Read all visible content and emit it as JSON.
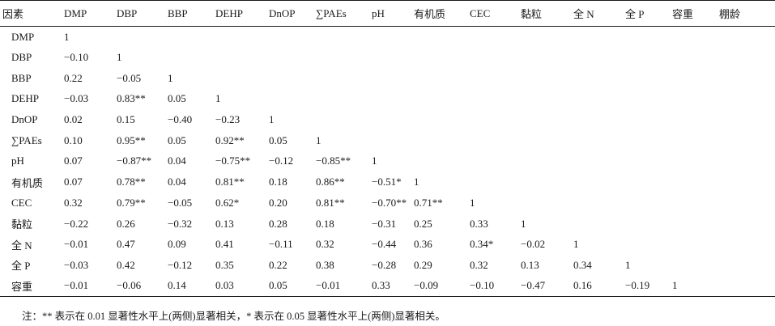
{
  "table": {
    "corner": "因素",
    "columns": [
      "DMP",
      "DBP",
      "BBP",
      "DEHP",
      "DnOP",
      "∑PAEs",
      "pH",
      "有机质",
      "CEC",
      "黏粒",
      "全 N",
      "全 P",
      "容重",
      "棚龄"
    ],
    "rows": [
      {
        "label": "DMP",
        "cells": [
          "1"
        ]
      },
      {
        "label": "DBP",
        "cells": [
          "−0.10",
          "1"
        ]
      },
      {
        "label": "BBP",
        "cells": [
          "0.22",
          "−0.05",
          "1"
        ]
      },
      {
        "label": "DEHP",
        "cells": [
          "−0.03",
          "0.83**",
          "0.05",
          "1"
        ]
      },
      {
        "label": "DnOP",
        "cells": [
          "0.02",
          "0.15",
          "−0.40",
          "−0.23",
          "1"
        ]
      },
      {
        "label": "∑PAEs",
        "cells": [
          "0.10",
          "0.95**",
          "0.05",
          "0.92**",
          "0.05",
          "1"
        ]
      },
      {
        "label": "pH",
        "cells": [
          "0.07",
          "−0.87**",
          "0.04",
          "−0.75**",
          "−0.12",
          "−0.85**",
          "1"
        ]
      },
      {
        "label": "有机质",
        "cells": [
          "0.07",
          "0.78**",
          "0.04",
          "0.81**",
          "0.18",
          "0.86**",
          "−0.51*",
          "1"
        ]
      },
      {
        "label": "CEC",
        "cells": [
          "0.32",
          "0.79**",
          "−0.05",
          "0.62*",
          "0.20",
          "0.81**",
          "−0.70**",
          "0.71**",
          "1"
        ]
      },
      {
        "label": "黏粒",
        "cells": [
          "−0.22",
          "0.26",
          "−0.32",
          "0.13",
          "0.28",
          "0.18",
          "−0.31",
          "0.25",
          "0.33",
          "1"
        ]
      },
      {
        "label": "全 N",
        "cells": [
          "−0.01",
          "0.47",
          "0.09",
          "0.41",
          "−0.11",
          "0.32",
          "−0.44",
          "0.36",
          "0.34*",
          "−0.02",
          "1"
        ]
      },
      {
        "label": "全 P",
        "cells": [
          "−0.03",
          "0.42",
          "−0.12",
          "0.35",
          "0.22",
          "0.38",
          "−0.28",
          "0.29",
          "0.32",
          "0.13",
          "0.34",
          "1"
        ]
      },
      {
        "label": "容重",
        "cells": [
          "−0.01",
          "−0.06",
          "0.14",
          "0.03",
          "0.05",
          "−0.01",
          "0.33",
          "−0.09",
          "−0.10",
          "−0.47",
          "0.16",
          "−0.19",
          "1"
        ]
      }
    ]
  },
  "note": "注：** 表示在 0.01 显著性水平上(两侧)显著相关，* 表示在 0.05 显著性水平上(两侧)显著相关。"
}
